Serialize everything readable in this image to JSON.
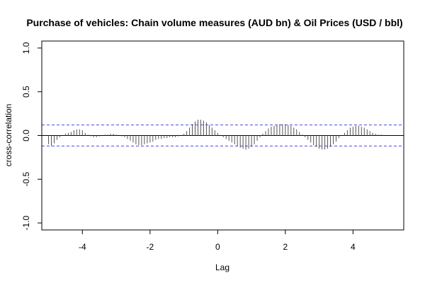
{
  "chart_data": {
    "type": "bar",
    "title": "Purchase of vehicles: Chain volume measures (AUD bn) & Oil Prices (USD / bbl)",
    "xlabel": "Lag",
    "ylabel": "cross-correlation",
    "xlim": [
      -5.2,
      5.5
    ],
    "ylim": [
      -1.08,
      1.08
    ],
    "xticks": [
      -4,
      -2,
      0,
      2,
      4
    ],
    "xtick_labels": [
      "-4",
      "-2",
      "0",
      "2",
      "4"
    ],
    "yticks": [
      -1.0,
      -0.5,
      0.0,
      0.5,
      1.0
    ],
    "ytick_labels": [
      "-1.0",
      "-0.5",
      "0.0",
      "0.5",
      "1.0"
    ],
    "lag_step": 0.0833,
    "confidence_limit": 0.12,
    "grid": false,
    "colors": {
      "bars": "#555555",
      "zero_line": "#000000",
      "confidence": "#4a4ae0",
      "frame": "#000000"
    },
    "lags": [
      -5.0,
      -4.917,
      -4.833,
      -4.75,
      -4.667,
      -4.583,
      -4.5,
      -4.417,
      -4.333,
      -4.25,
      -4.167,
      -4.083,
      -4.0,
      -3.917,
      -3.833,
      -3.75,
      -3.667,
      -3.583,
      -3.5,
      -3.417,
      -3.333,
      -3.25,
      -3.167,
      -3.083,
      -3.0,
      -2.917,
      -2.833,
      -2.75,
      -2.667,
      -2.583,
      -2.5,
      -2.417,
      -2.333,
      -2.25,
      -2.167,
      -2.083,
      -2.0,
      -1.917,
      -1.833,
      -1.75,
      -1.667,
      -1.583,
      -1.5,
      -1.417,
      -1.333,
      -1.25,
      -1.167,
      -1.083,
      -1.0,
      -0.917,
      -0.833,
      -0.75,
      -0.667,
      -0.583,
      -0.5,
      -0.417,
      -0.333,
      -0.25,
      -0.167,
      -0.083,
      0.0,
      0.083,
      0.167,
      0.25,
      0.333,
      0.417,
      0.5,
      0.583,
      0.667,
      0.75,
      0.833,
      0.917,
      1.0,
      1.083,
      1.167,
      1.25,
      1.333,
      1.417,
      1.5,
      1.583,
      1.667,
      1.75,
      1.833,
      1.917,
      2.0,
      2.083,
      2.167,
      2.25,
      2.333,
      2.417,
      2.5,
      2.583,
      2.667,
      2.75,
      2.833,
      2.917,
      3.0,
      3.083,
      3.167,
      3.25,
      3.333,
      3.417,
      3.5,
      3.583,
      3.667,
      3.75,
      3.833,
      3.917,
      4.0,
      4.083,
      4.167,
      4.25,
      4.333,
      4.417,
      4.5,
      4.583,
      4.667,
      4.75,
      4.833,
      4.917,
      5.0
    ],
    "values": [
      -0.1,
      -0.12,
      -0.09,
      -0.05,
      -0.02,
      0.0,
      0.02,
      0.03,
      0.04,
      0.06,
      0.07,
      0.07,
      0.06,
      0.03,
      0.01,
      -0.01,
      -0.02,
      -0.02,
      -0.01,
      0.0,
      0.01,
      0.01,
      0.02,
      0.02,
      0.01,
      0.0,
      -0.01,
      -0.02,
      -0.04,
      -0.06,
      -0.08,
      -0.1,
      -0.11,
      -0.11,
      -0.1,
      -0.09,
      -0.08,
      -0.07,
      -0.05,
      -0.04,
      -0.04,
      -0.03,
      -0.03,
      -0.02,
      -0.02,
      -0.02,
      -0.01,
      0.0,
      0.02,
      0.05,
      0.09,
      0.13,
      0.16,
      0.18,
      0.18,
      0.17,
      0.15,
      0.12,
      0.09,
      0.06,
      0.03,
      0.0,
      -0.02,
      -0.04,
      -0.06,
      -0.08,
      -0.1,
      -0.12,
      -0.14,
      -0.15,
      -0.16,
      -0.15,
      -0.13,
      -0.1,
      -0.06,
      -0.02,
      0.02,
      0.05,
      0.08,
      0.1,
      0.11,
      0.12,
      0.13,
      0.13,
      0.13,
      0.12,
      0.11,
      0.09,
      0.07,
      0.04,
      0.01,
      -0.02,
      -0.05,
      -0.08,
      -0.11,
      -0.13,
      -0.15,
      -0.16,
      -0.16,
      -0.15,
      -0.13,
      -0.1,
      -0.07,
      -0.03,
      0.0,
      0.03,
      0.06,
      0.09,
      0.1,
      0.11,
      0.11,
      0.1,
      0.09,
      0.07,
      0.05,
      0.03,
      0.02,
      0.01,
      0.01,
      0.0,
      0.0
    ]
  }
}
